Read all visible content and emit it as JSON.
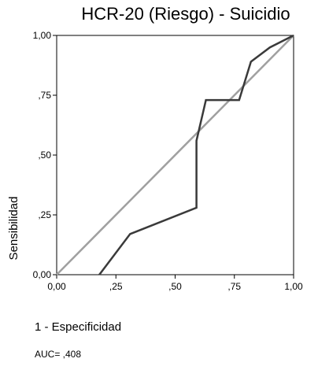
{
  "chart_data": {
    "type": "line",
    "title": "HCR-20 (Riesgo) - Suicidio",
    "xlabel": "1 - Especificidad",
    "ylabel": "Sensibilidad",
    "xlim": [
      0,
      1
    ],
    "ylim": [
      0,
      1
    ],
    "x_ticks": [
      0,
      0.25,
      0.5,
      0.75,
      1
    ],
    "y_ticks": [
      0,
      0.25,
      0.5,
      0.75,
      1
    ],
    "x_tick_labels": [
      "0,00",
      ",25",
      ",50",
      ",75",
      "1,00"
    ],
    "y_tick_labels": [
      "0,00",
      ",25",
      ",50",
      ",75",
      "1,00"
    ],
    "grid": false,
    "legend": "none",
    "series": [
      {
        "color": "#3a3a3a",
        "x": [
          0.18,
          0.31,
          0.59,
          0.59,
          0.63,
          0.77,
          0.82,
          0.9,
          1.0
        ],
        "y": [
          0.0,
          0.17,
          0.28,
          0.56,
          0.73,
          0.73,
          0.89,
          0.95,
          1.0
        ]
      },
      {
        "color": "#a0a0a0",
        "x": [
          0,
          1
        ],
        "y": [
          0,
          1
        ]
      }
    ],
    "annotations": [
      "AUC= ,408"
    ]
  }
}
